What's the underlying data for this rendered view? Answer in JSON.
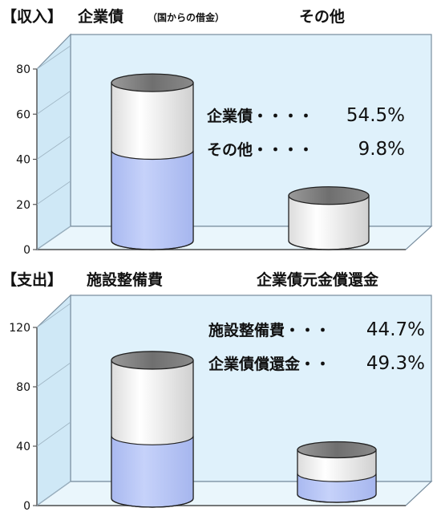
{
  "colors": {
    "panel_back": "#dff1fb",
    "panel_front": "#f4fbfe",
    "panel_edge": "#7a8fa0",
    "fill_blue": "#b9c8f7",
    "cyl_light": "#f7f7f7",
    "cyl_dark": "#7b7b7b",
    "text": "#111111"
  },
  "chart_data": [
    {
      "type": "bar",
      "title": "【収入】",
      "series": [
        {
          "name": "企業債",
          "note": "（国からの借金）"
        },
        {
          "name": "その他"
        }
      ],
      "y_ticks": [
        "80",
        "60",
        "40",
        "20",
        "0"
      ],
      "ylim": [
        0,
        80
      ],
      "bars": [
        {
          "total": 70,
          "filled": 40
        },
        {
          "total": 20,
          "filled": 0
        }
      ],
      "annotations": [
        {
          "label": "企業債・・・・",
          "value": "54.5%"
        },
        {
          "label": "その他・・・・",
          "value": "9.8%"
        }
      ]
    },
    {
      "type": "bar",
      "title": "【支出】",
      "series": [
        {
          "name": "施設整備費"
        },
        {
          "name": "企業債元金償還金"
        }
      ],
      "y_ticks": [
        "120",
        "80",
        "40",
        "0"
      ],
      "ylim": [
        0,
        120
      ],
      "bars": [
        {
          "total": 93,
          "filled": 42
        },
        {
          "total": 30,
          "filled": 14
        }
      ],
      "annotations": [
        {
          "label": "施設整備費・・・",
          "value": "44.7%"
        },
        {
          "label": "企業債償還金・・",
          "value": "49.3%"
        }
      ]
    }
  ]
}
